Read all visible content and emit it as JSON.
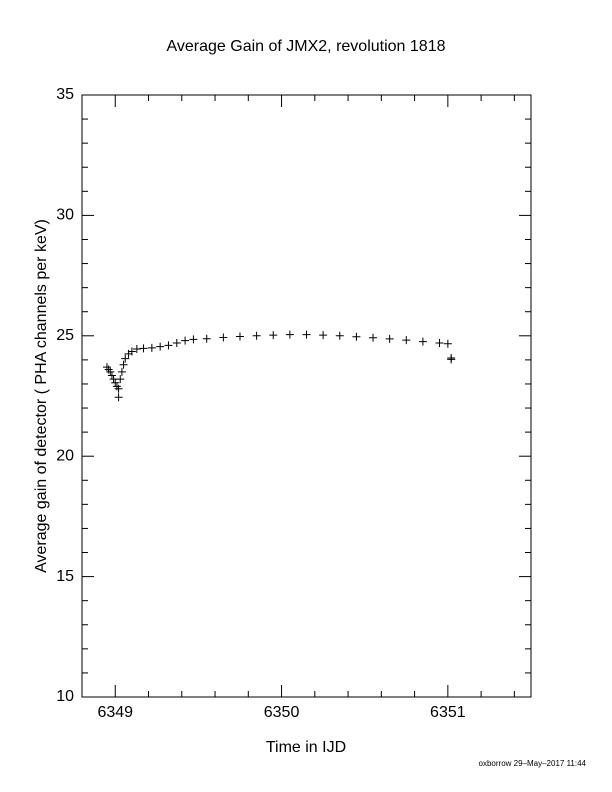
{
  "chart_data": {
    "type": "scatter",
    "title": "Average Gain of JMX2, revolution 1818",
    "xlabel": "Time in IJD",
    "ylabel": "Average gain of detector ( PHA channels per keV)",
    "footer": "oxborrow 29–May–2017 11:44",
    "color": "#000000",
    "marker": "plus",
    "xlim": [
      6348.8,
      6351.5
    ],
    "ylim": [
      10,
      35
    ],
    "xticks": [
      6349,
      6350,
      6351
    ],
    "yticks": [
      10,
      15,
      20,
      25,
      30,
      35
    ],
    "xminor_ticks": [
      6349.2,
      6349.4,
      6349.6,
      6349.8,
      6350.2,
      6350.4,
      6350.6,
      6350.8,
      6351.2,
      6351.4
    ],
    "yminor_ticks": [
      11,
      12,
      13,
      14,
      16,
      17,
      18,
      19,
      21,
      22,
      23,
      24,
      26,
      27,
      28,
      29,
      31,
      32,
      33,
      34
    ],
    "x": [
      6348.95,
      6348.96,
      6348.97,
      6348.98,
      6348.99,
      6349.0,
      6349.01,
      6349.02,
      6349.02,
      6349.03,
      6349.04,
      6349.05,
      6349.06,
      6349.08,
      6349.1,
      6349.13,
      6349.17,
      6349.22,
      6349.27,
      6349.32,
      6349.37,
      6349.42,
      6349.47,
      6349.55,
      6349.65,
      6349.75,
      6349.85,
      6349.95,
      6350.05,
      6350.15,
      6350.25,
      6350.35,
      6350.45,
      6350.55,
      6350.65,
      6350.75,
      6350.85,
      6350.95,
      6351.0,
      6351.02,
      6351.02
    ],
    "values": [
      23.7,
      23.6,
      23.5,
      23.35,
      23.2,
      23.05,
      22.9,
      22.45,
      22.8,
      23.2,
      23.5,
      23.8,
      24.05,
      24.25,
      24.35,
      24.45,
      24.48,
      24.5,
      24.55,
      24.6,
      24.7,
      24.8,
      24.85,
      24.88,
      24.93,
      24.97,
      25.0,
      25.03,
      25.05,
      25.05,
      25.03,
      25.0,
      24.96,
      24.92,
      24.87,
      24.82,
      24.76,
      24.7,
      24.67,
      24.08,
      24.02
    ]
  }
}
